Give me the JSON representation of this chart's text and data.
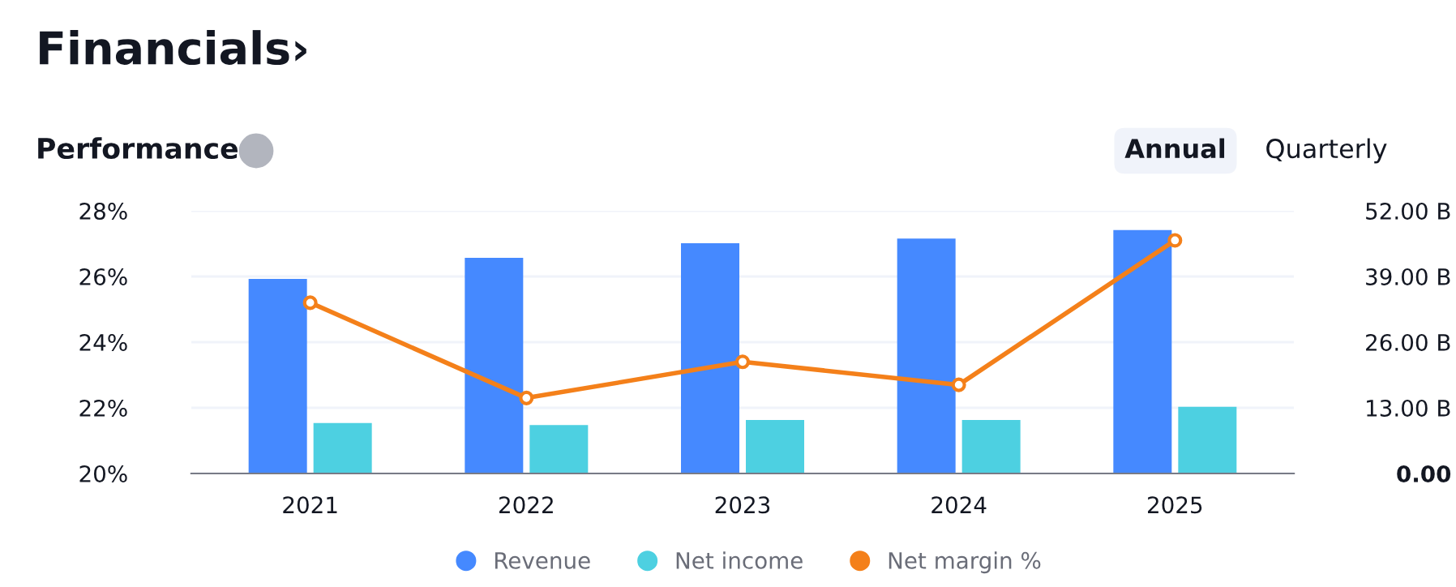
{
  "chart_data": {
    "type": "bar",
    "title": "Financials›",
    "subtitle": "Performance",
    "annotations": [
      "Annual",
      "Quarterly"
    ],
    "categories": [
      "2021",
      "2022",
      "2023",
      "2024",
      "2025"
    ],
    "series": [
      {
        "name": "Revenue",
        "color": "#4589ff",
        "axis": "y2",
        "values": [
          38.5,
          42.7,
          45.6,
          46.5,
          48.2
        ]
      },
      {
        "name": "Net income",
        "color": "#4dd0e1",
        "axis": "y2",
        "values": [
          10.0,
          9.6,
          10.6,
          10.6,
          13.2
        ]
      },
      {
        "name": "Net margin %",
        "type": "line",
        "color": "#f4801a",
        "marker": "circle",
        "values": [
          25.2,
          22.3,
          23.4,
          22.7,
          27.1
        ]
      }
    ],
    "ylim": [
      20,
      28
    ],
    "yticks": [
      {
        "value": 20,
        "label": "20%"
      },
      {
        "value": 22,
        "label": "22%"
      },
      {
        "value": 24,
        "label": "24%"
      },
      {
        "value": 26,
        "label": "26%"
      },
      {
        "value": 28,
        "label": "28%"
      }
    ],
    "y2lim": [
      0,
      52
    ],
    "y2ticks": [
      {
        "value": 0,
        "label": "0.00"
      },
      {
        "value": 13,
        "label": "13.00 B"
      },
      {
        "value": 26,
        "label": "26.00 B"
      },
      {
        "value": 39,
        "label": "39.00 B"
      },
      {
        "value": 52,
        "label": "52.00 B"
      }
    ],
    "grid": "y",
    "legend": "bottom"
  }
}
